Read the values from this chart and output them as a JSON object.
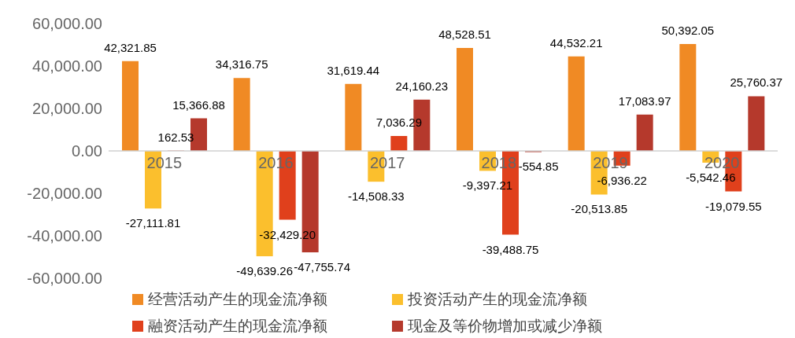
{
  "chart_data": {
    "type": "bar",
    "categories": [
      "2015",
      "2016",
      "2017",
      "2018",
      "2019",
      "2020"
    ],
    "series": [
      {
        "name": "经营活动产生的现金流净额",
        "color": "#f08a24",
        "values": [
          42321.85,
          34316.75,
          31619.44,
          48528.51,
          44532.21,
          50392.05
        ],
        "value_labels": [
          "42,321.85",
          "34,316.75",
          "31,619.44",
          "48,528.51",
          "44,532.21",
          "50,392.05"
        ]
      },
      {
        "name": "投资活动产生的现金流净额",
        "color": "#fbbf2d",
        "values": [
          -27111.81,
          -49639.26,
          -14508.33,
          -9397.21,
          -20513.85,
          -5542.46
        ],
        "value_labels": [
          "-27,111.81",
          "-49,639.26",
          "-14,508.33",
          "-9,397.21",
          "-20,513.85",
          "-5,542.46"
        ]
      },
      {
        "name": "融资活动产生的现金流净额",
        "color": "#e0401c",
        "values": [
          162.53,
          -32429.2,
          7036.29,
          -39488.75,
          -6936.22,
          -19079.55
        ],
        "value_labels": [
          "162.53",
          "-32,429.20",
          "7,036.29",
          "-39,488.75",
          "-6,936.22",
          "-19,079.55"
        ]
      },
      {
        "name": "现金及等价物增加或减少净额",
        "color": "#b5392c",
        "values": [
          15366.88,
          -47755.74,
          24160.23,
          -554.85,
          17083.97,
          25760.37
        ],
        "value_labels": [
          "15,366.88",
          "-47,755.74",
          "24,160.23",
          "-554.85",
          "17,083.97",
          "25,760.37"
        ]
      }
    ],
    "ylim": [
      -60000,
      60000
    ],
    "yticks": [
      {
        "value": -60000,
        "label": "-60,000.00"
      },
      {
        "value": -40000,
        "label": "-40,000.00"
      },
      {
        "value": -20000,
        "label": "-20,000.00"
      },
      {
        "value": 0,
        "label": "0.00"
      },
      {
        "value": 20000,
        "label": "20,000.00"
      },
      {
        "value": 40000,
        "label": "40,000.00"
      },
      {
        "value": 60000,
        "label": "60,000.00"
      }
    ],
    "grid": false,
    "legend": "bottom"
  }
}
